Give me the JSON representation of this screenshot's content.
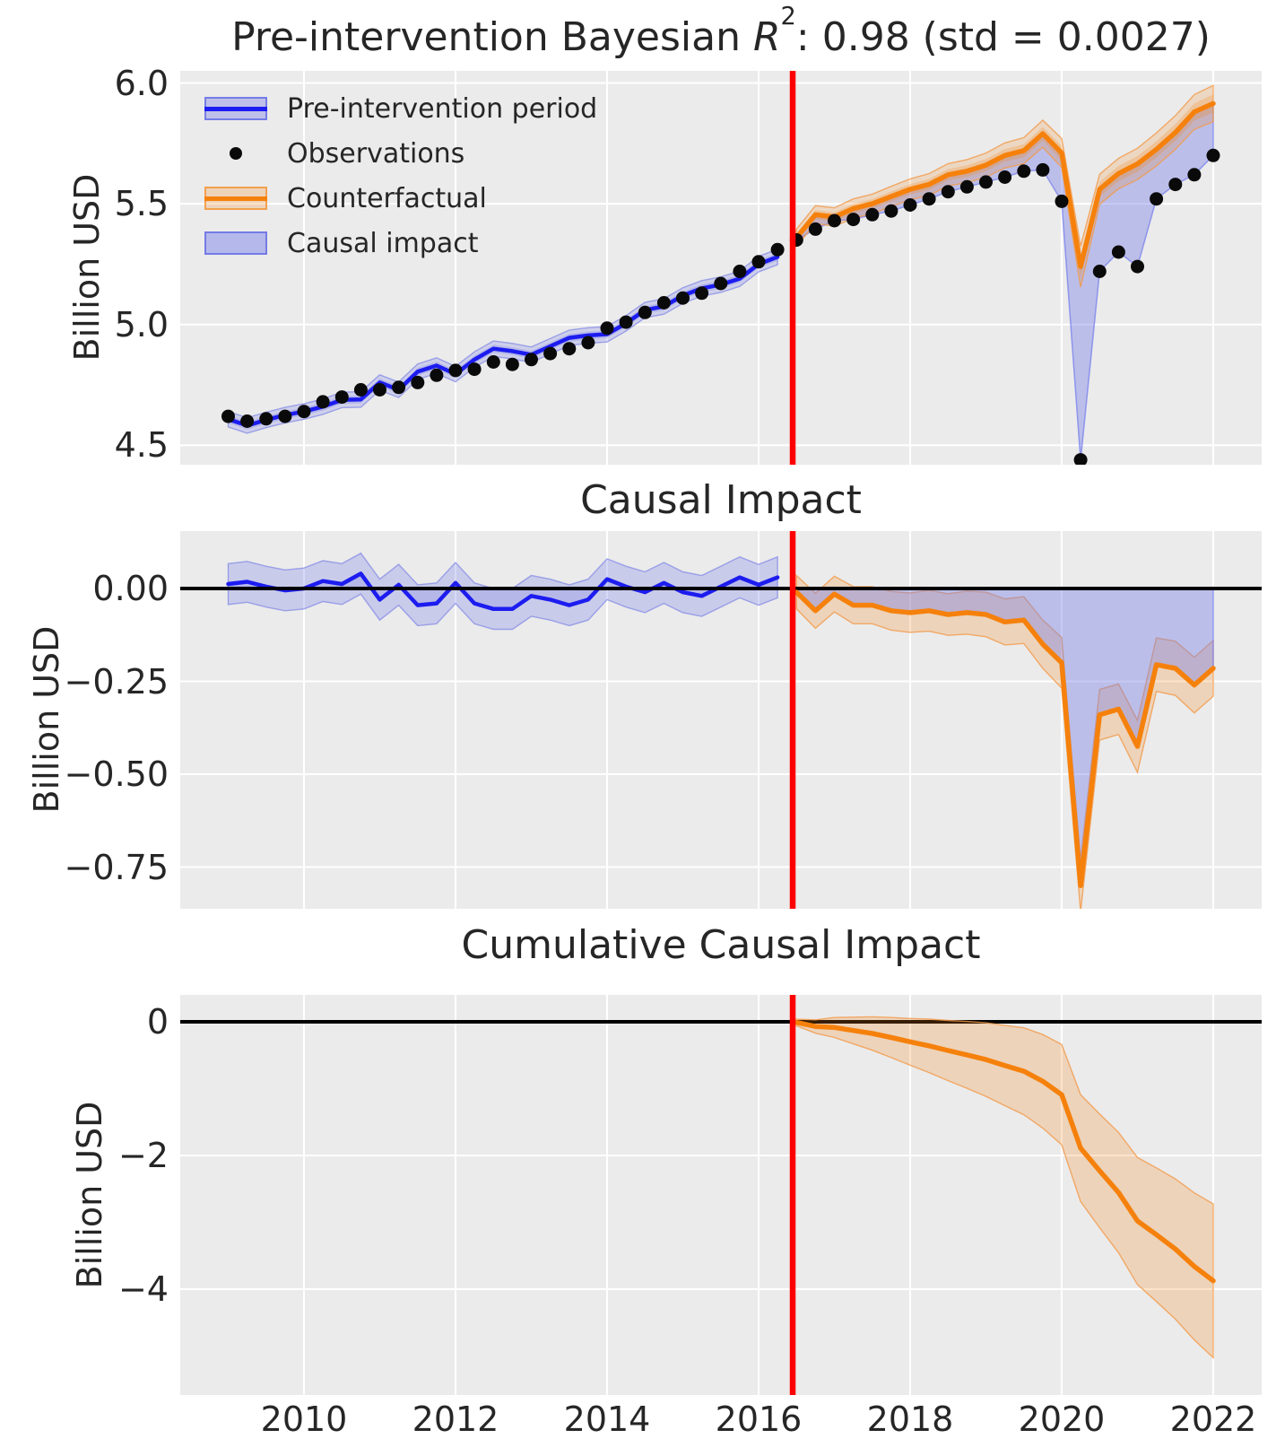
{
  "figure": {
    "background": "#ffffff",
    "plot_background": "#ebebeb",
    "grid_color": "#ffffff",
    "text_color": "#262626"
  },
  "chart_data": {
    "type": "line",
    "x_unit": "year (quarterly)",
    "intervention_x": 2016.45,
    "xlim": [
      2008.37,
      2022.64
    ],
    "xticks": [
      2010,
      2012,
      2014,
      2016,
      2018,
      2020,
      2022
    ],
    "xtick_labels": [
      "2010",
      "2012",
      "2014",
      "2016",
      "2018",
      "2020",
      "2022"
    ],
    "colors": {
      "blue_line": "#1c1cf0",
      "blue_fill": "#7a80e8",
      "orange_line": "#f5810c",
      "orange_fill": "#f5810c",
      "red_line": "#fe0000",
      "zero_line": "#000000",
      "observation_dot": "#0a0a0a"
    },
    "legend": [
      {
        "label": "Pre-intervention period",
        "swatch": "blue-band-with-line"
      },
      {
        "label": "Observations",
        "swatch": "black-dot"
      },
      {
        "label": "Counterfactual",
        "swatch": "orange-band-with-line"
      },
      {
        "label": "Causal impact",
        "swatch": "blue-patch"
      }
    ],
    "panels": [
      {
        "title_parts": {
          "prefix": "Pre-intervention Bayesian ",
          "r_symbol": "R",
          "exponent": "2",
          "suffix": ": 0.98 (std = 0.0027)"
        },
        "ylabel": "Billion USD",
        "ylim": [
          4.42,
          6.05
        ],
        "yticks": [
          6.0,
          5.5,
          5.0,
          4.5
        ],
        "ytick_labels": [
          "6.0",
          "5.5",
          "5.0",
          "4.5"
        ]
      },
      {
        "title": "Causal Impact",
        "ylabel": "Billion USD",
        "ylim": [
          -0.86,
          0.155
        ],
        "yticks": [
          0,
          -0.25,
          -0.5,
          -0.75
        ],
        "ytick_labels": [
          "0.00",
          "−0.25",
          "−0.50",
          "−0.75"
        ]
      },
      {
        "title": "Cumulative Causal Impact",
        "ylabel": "Billion USD",
        "ylim": [
          -5.58,
          0.4
        ],
        "yticks": [
          0,
          -2,
          -4
        ],
        "ytick_labels": [
          "0",
          "−2",
          "−4"
        ]
      }
    ],
    "series": {
      "x_pre": [
        2009.0,
        2009.25,
        2009.5,
        2009.75,
        2010.0,
        2010.25,
        2010.5,
        2010.75,
        2011.0,
        2011.25,
        2011.5,
        2011.75,
        2012.0,
        2012.25,
        2012.5,
        2012.75,
        2013.0,
        2013.25,
        2013.5,
        2013.75,
        2014.0,
        2014.25,
        2014.5,
        2014.75,
        2015.0,
        2015.25,
        2015.5,
        2015.75,
        2016.0,
        2016.25
      ],
      "x_post": [
        2016.5,
        2016.75,
        2017.0,
        2017.25,
        2017.5,
        2017.75,
        2018.0,
        2018.25,
        2018.5,
        2018.75,
        2019.0,
        2019.25,
        2019.5,
        2019.75,
        2020.0,
        2020.25,
        2020.5,
        2020.75,
        2021.0,
        2021.25,
        2021.5,
        2021.75,
        2022.0
      ],
      "observations_pre": [
        4.62,
        4.6,
        4.61,
        4.62,
        4.64,
        4.68,
        4.7,
        4.73,
        4.73,
        4.74,
        4.76,
        4.79,
        4.81,
        4.815,
        4.845,
        4.835,
        4.855,
        4.88,
        4.9,
        4.925,
        4.985,
        5.01,
        5.05,
        5.09,
        5.11,
        5.13,
        5.17,
        5.22,
        5.26,
        5.31
      ],
      "observations_post": [
        5.35,
        5.395,
        5.43,
        5.435,
        5.455,
        5.47,
        5.495,
        5.52,
        5.55,
        5.57,
        5.59,
        5.61,
        5.635,
        5.64,
        5.51,
        4.44,
        5.22,
        5.3,
        5.24,
        5.52,
        5.58,
        5.62,
        5.7
      ],
      "fit_pre": [
        4.608,
        4.582,
        4.605,
        4.625,
        4.64,
        4.66,
        4.688,
        4.69,
        4.76,
        4.73,
        4.805,
        4.83,
        4.795,
        4.855,
        4.9,
        4.89,
        4.875,
        4.91,
        4.945,
        4.955,
        4.96,
        5.005,
        5.06,
        5.075,
        5.12,
        5.15,
        5.165,
        5.19,
        5.25,
        5.28
      ],
      "fit_band_width": 0.032,
      "fit_band_inner_width": 0.016,
      "counterfactual_post": [
        5.36,
        5.455,
        5.445,
        5.48,
        5.5,
        5.53,
        5.56,
        5.58,
        5.62,
        5.635,
        5.66,
        5.7,
        5.72,
        5.79,
        5.71,
        5.24,
        5.56,
        5.625,
        5.665,
        5.725,
        5.795,
        5.88,
        5.915
      ],
      "counterfactual_band_width": [
        0.035,
        0.037,
        0.038,
        0.04,
        0.04,
        0.042,
        0.043,
        0.045,
        0.046,
        0.048,
        0.05,
        0.052,
        0.054,
        0.056,
        0.06,
        0.085,
        0.062,
        0.063,
        0.065,
        0.068,
        0.07,
        0.072,
        0.075
      ],
      "impact_pre": [
        0.012,
        0.018,
        0.005,
        -0.005,
        0.0,
        0.02,
        0.012,
        0.04,
        -0.03,
        0.01,
        -0.045,
        -0.04,
        0.015,
        -0.04,
        -0.055,
        -0.055,
        -0.02,
        -0.03,
        -0.045,
        -0.03,
        0.025,
        0.005,
        -0.01,
        0.015,
        -0.01,
        -0.02,
        0.005,
        0.03,
        0.01,
        0.03
      ],
      "impact_pre_band_width": 0.055,
      "impact_post": [
        -0.01,
        -0.06,
        -0.015,
        -0.045,
        -0.045,
        -0.06,
        -0.065,
        -0.06,
        -0.07,
        -0.065,
        -0.07,
        -0.09,
        -0.085,
        -0.15,
        -0.2,
        -0.8,
        -0.34,
        -0.325,
        -0.425,
        -0.205,
        -0.215,
        -0.26,
        -0.215
      ],
      "impact_post_band_width": [
        0.045,
        0.047,
        0.048,
        0.05,
        0.05,
        0.052,
        0.053,
        0.055,
        0.056,
        0.058,
        0.06,
        0.062,
        0.063,
        0.065,
        0.068,
        0.07,
        0.068,
        0.068,
        0.07,
        0.072,
        0.073,
        0.075,
        0.075
      ],
      "cumulative_post": [
        -0.01,
        -0.07,
        -0.085,
        -0.13,
        -0.175,
        -0.235,
        -0.3,
        -0.36,
        -0.43,
        -0.495,
        -0.565,
        -0.655,
        -0.74,
        -0.89,
        -1.09,
        -1.89,
        -2.23,
        -2.555,
        -2.98,
        -3.185,
        -3.4,
        -3.66,
        -3.875
      ],
      "cumulative_band_width": [
        0.05,
        0.1,
        0.15,
        0.2,
        0.25,
        0.3,
        0.35,
        0.4,
        0.45,
        0.5,
        0.55,
        0.6,
        0.65,
        0.7,
        0.75,
        0.8,
        0.85,
        0.9,
        0.95,
        1.0,
        1.05,
        1.1,
        1.15
      ]
    }
  }
}
